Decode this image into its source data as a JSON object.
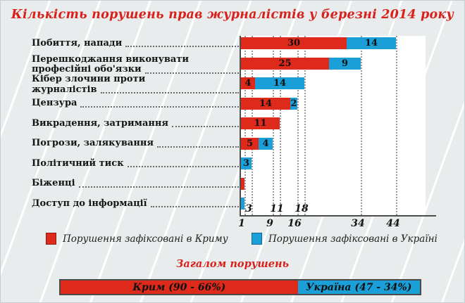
{
  "title": "Кількість порушень прав журналістів у березні 2014 року",
  "colors": {
    "crimea_red": "#dd2a1b",
    "ukraine_blue": "#1b9fd9",
    "title_red": "#d8211b",
    "background": "#e8eced",
    "plot_background": "#ffffff",
    "axis": "#4d4d4d"
  },
  "chart_data": [
    {
      "id": "violations-by-type",
      "type": "bar",
      "orientation": "horizontal",
      "stacked": true,
      "title": "Кількість порушень прав журналістів у березні 2014 року",
      "categories": [
        "Побиття, напади",
        "Перешкоджання виконувати професійні обо'язки",
        "Кібер злочини проти журналістів",
        "Цензура",
        "Викрадення, затримання",
        "Погрози, залякування",
        "Політичний тиск",
        "Біженці",
        "Доступ до інформації"
      ],
      "category_lines": [
        [
          "Побиття, напади"
        ],
        [
          "Перешкоджання виконувати",
          "професійні обо'язки"
        ],
        [
          "Кібер злочини проти",
          "журналістів"
        ],
        [
          "Цензура"
        ],
        [
          "Викрадення, затримання"
        ],
        [
          "Погрози, залякування"
        ],
        [
          "Політичний тиск"
        ],
        [
          "Біженці"
        ],
        [
          "Доступ до інформації"
        ]
      ],
      "series": [
        {
          "name": "Порушення зафіксовані в Криму",
          "color": "#dd2a1b",
          "values": [
            30,
            25,
            4,
            14,
            11,
            5,
            0,
            1,
            0
          ]
        },
        {
          "name": "Порушення зафіксовані в Україні",
          "color": "#1b9fd9",
          "values": [
            14,
            9,
            14,
            2,
            0,
            4,
            3,
            0,
            1
          ]
        }
      ],
      "totals_per_category": [
        44,
        34,
        18,
        16,
        11,
        9,
        3,
        1,
        1
      ],
      "bar_labels_min_value": 2,
      "x_ticks_upper": [
        3,
        11,
        18
      ],
      "x_ticks_lower": [
        1,
        9,
        16,
        34,
        44
      ],
      "xlim": [
        0,
        52
      ],
      "grid": "dotted-vertical",
      "legend_position": "bottom"
    },
    {
      "id": "totals",
      "type": "bar",
      "orientation": "horizontal",
      "stacked": true,
      "title": "Загалом порушень",
      "categories": [
        "Загалом порушень"
      ],
      "series": [
        {
          "name": "Крим",
          "label": "Крим (90 - 66%)",
          "color": "#dd2a1b",
          "values": [
            90
          ],
          "percent": 66
        },
        {
          "name": "Україна",
          "label": "Україна (47 - 34%)",
          "color": "#1b9fd9",
          "values": [
            47
          ],
          "percent": 34
        }
      ]
    }
  ],
  "legend": {
    "crimea": "Порушення зафіксовані в Криму",
    "ukraine": "Порушення зафіксовані в Україні"
  },
  "totals_heading": "Загалом порушень",
  "totals_bar": {
    "crimea_label": "Крим (90 - 66%)",
    "ukraine_label": "Україна (47 - 34%)",
    "crimea_percent": 66,
    "ukraine_percent": 34
  }
}
